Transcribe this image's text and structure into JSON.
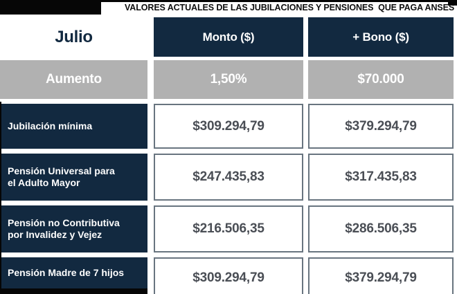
{
  "title": "VALORES ACTUALES DE LAS JUBILACIONES Y PENSIONES  QUE PAGA ANSES",
  "colors": {
    "navy": "#122940",
    "gray": "#b1b1b1",
    "value_text": "#4a4e55",
    "cell_border": "#68747f",
    "black": "#060606",
    "white": "#ffffff"
  },
  "table": {
    "month": "Julio",
    "columns": [
      "Monto ($)",
      "+ Bono ($)"
    ],
    "increase": {
      "label": "Aumento",
      "monto": "1,50%",
      "bono": "$70.000"
    },
    "rows": [
      {
        "label": "Jubilación mínima",
        "monto": "$309.294,79",
        "bono": "$379.294,79"
      },
      {
        "label": "Pensión Universal para\nel Adulto Mayor",
        "monto": "$247.435,83",
        "bono": "$317.435,83"
      },
      {
        "label": "Pensión no Contributiva\npor Invalidez y Vejez",
        "monto": "$216.506,35",
        "bono": "$286.506,35"
      },
      {
        "label": "Pensión Madre de 7 hijos",
        "monto": "$309.294,79",
        "bono": "$379.294,79"
      }
    ]
  },
  "chart_data": {
    "type": "table",
    "title": "VALORES ACTUALES DE LAS JUBILACIONES Y PENSIONES  QUE PAGA ANSES",
    "columns": [
      "Julio",
      "Monto ($)",
      "+ Bono ($)"
    ],
    "rows": [
      [
        "Aumento",
        "1,50%",
        "$70.000"
      ],
      [
        "Jubilación mínima",
        "$309.294,79",
        "$379.294,79"
      ],
      [
        "Pensión Universal para el Adulto Mayor",
        "$247.435,83",
        "$317.435,83"
      ],
      [
        "Pensión no Contributiva por Invalidez y Vejez",
        "$216.506,35",
        "$286.506,35"
      ],
      [
        "Pensión Madre de 7 hijos",
        "$309.294,79",
        "$379.294,79"
      ]
    ]
  }
}
